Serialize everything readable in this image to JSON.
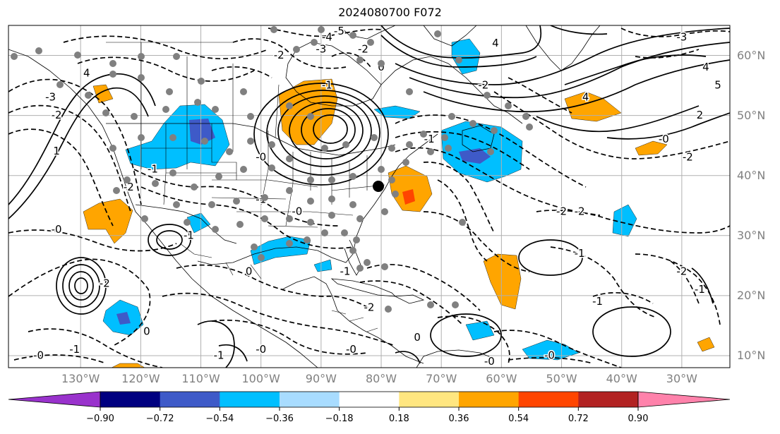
{
  "title": "2024080700 F072",
  "map": {
    "projection": "PlateCarree",
    "extent_lon": [
      -142,
      -22
    ],
    "extent_lat": [
      8,
      65
    ],
    "lon_ticks": [
      {
        "value": -130,
        "label": "130°W"
      },
      {
        "value": -120,
        "label": "120°W"
      },
      {
        "value": -110,
        "label": "110°W"
      },
      {
        "value": -100,
        "label": "100°W"
      },
      {
        "value": -90,
        "label": "90°W"
      },
      {
        "value": -80,
        "label": "80°W"
      },
      {
        "value": -70,
        "label": "70°W"
      },
      {
        "value": -60,
        "label": "60°W"
      },
      {
        "value": -50,
        "label": "50°W"
      },
      {
        "value": -40,
        "label": "40°W"
      },
      {
        "value": -30,
        "label": "30°W"
      }
    ],
    "lat_ticks": [
      {
        "value": 60,
        "label": "60°N"
      },
      {
        "value": 50,
        "label": "50°N"
      },
      {
        "value": 40,
        "label": "40°N"
      },
      {
        "value": 30,
        "label": "30°N"
      },
      {
        "value": 20,
        "label": "20°N"
      },
      {
        "value": 10,
        "label": "10°N"
      }
    ],
    "grid": true,
    "contour_labels": [
      {
        "lon": -135,
        "lat": 53,
        "text": "-3"
      },
      {
        "lon": -134,
        "lat": 50,
        "text": "-2"
      },
      {
        "lon": -134,
        "lat": 44,
        "text": "1"
      },
      {
        "lon": -129,
        "lat": 57,
        "text": "4"
      },
      {
        "lon": -134,
        "lat": 31,
        "text": "-0"
      },
      {
        "lon": -126,
        "lat": 22,
        "text": "-2"
      },
      {
        "lon": -122,
        "lat": 38,
        "text": "-2"
      },
      {
        "lon": -118,
        "lat": 41,
        "text": "-1"
      },
      {
        "lon": -112,
        "lat": 30,
        "text": "-1"
      },
      {
        "lon": -102,
        "lat": 24,
        "text": "0"
      },
      {
        "lon": -97,
        "lat": 60,
        "text": "-2"
      },
      {
        "lon": -90,
        "lat": 61,
        "text": "-3"
      },
      {
        "lon": -89,
        "lat": 63,
        "text": "-4"
      },
      {
        "lon": -87,
        "lat": 64,
        "text": "-5"
      },
      {
        "lon": -83,
        "lat": 61,
        "text": "-2"
      },
      {
        "lon": -80,
        "lat": 58,
        "text": "0"
      },
      {
        "lon": -89,
        "lat": 55,
        "text": "-1"
      },
      {
        "lon": -100,
        "lat": 43,
        "text": "-0"
      },
      {
        "lon": -100,
        "lat": 36,
        "text": "-1"
      },
      {
        "lon": -94,
        "lat": 34,
        "text": "-0"
      },
      {
        "lon": -86,
        "lat": 24,
        "text": "-1"
      },
      {
        "lon": -82,
        "lat": 18,
        "text": "-2"
      },
      {
        "lon": -85,
        "lat": 11,
        "text": "-0"
      },
      {
        "lon": -74,
        "lat": 13,
        "text": "0"
      },
      {
        "lon": -72,
        "lat": 46,
        "text": "-1"
      },
      {
        "lon": -63,
        "lat": 55,
        "text": "-2"
      },
      {
        "lon": -61,
        "lat": 62,
        "text": "4"
      },
      {
        "lon": -50,
        "lat": 34,
        "text": "-2"
      },
      {
        "lon": -47,
        "lat": 34,
        "text": "-2"
      },
      {
        "lon": -47,
        "lat": 27,
        "text": "-1"
      },
      {
        "lon": -44,
        "lat": 19,
        "text": "-1"
      },
      {
        "lon": -30,
        "lat": 24,
        "text": "-2"
      },
      {
        "lon": -27,
        "lat": 21,
        "text": "-1"
      },
      {
        "lon": -46,
        "lat": 53,
        "text": "4"
      },
      {
        "lon": -30,
        "lat": 63,
        "text": "-3"
      },
      {
        "lon": -26,
        "lat": 58,
        "text": "4"
      },
      {
        "lon": -24,
        "lat": 55,
        "text": "5"
      },
      {
        "lon": -27,
        "lat": 50,
        "text": "2"
      },
      {
        "lon": -33,
        "lat": 46,
        "text": "-0"
      },
      {
        "lon": -29,
        "lat": 43,
        "text": "-2"
      },
      {
        "lon": -62,
        "lat": 9,
        "text": "-0"
      },
      {
        "lon": -52,
        "lat": 10,
        "text": "-0"
      },
      {
        "lon": -137,
        "lat": 10,
        "text": "-0"
      },
      {
        "lon": -131,
        "lat": 11,
        "text": "-1"
      },
      {
        "lon": -119,
        "lat": 14,
        "text": "0"
      },
      {
        "lon": -107,
        "lat": 10,
        "text": "-1"
      },
      {
        "lon": -100,
        "lat": 11,
        "text": "-0"
      }
    ],
    "colors": {
      "land_outline": "#000000",
      "grid_line": "#b0b0b0",
      "contour": "#000000",
      "obs_dot": "#808080",
      "marker": "#000000"
    }
  },
  "colorbar": {
    "levels": [
      -0.9,
      -0.72,
      -0.54,
      -0.36,
      -0.18,
      0.18,
      0.36,
      0.54,
      0.72,
      0.9
    ],
    "tick_labels": [
      "−0.90",
      "−0.72",
      "−0.54",
      "−0.36",
      "−0.18",
      "0.18",
      "0.36",
      "0.54",
      "0.72",
      "0.90"
    ],
    "colors": [
      "#9932cc",
      "#000080",
      "#3e5ac8",
      "#00bfff",
      "#a8dcff",
      "#ffffff",
      "#ffe680",
      "#ffa500",
      "#ff4500",
      "#b22222",
      "#ff82ab"
    ],
    "extend": "both"
  }
}
